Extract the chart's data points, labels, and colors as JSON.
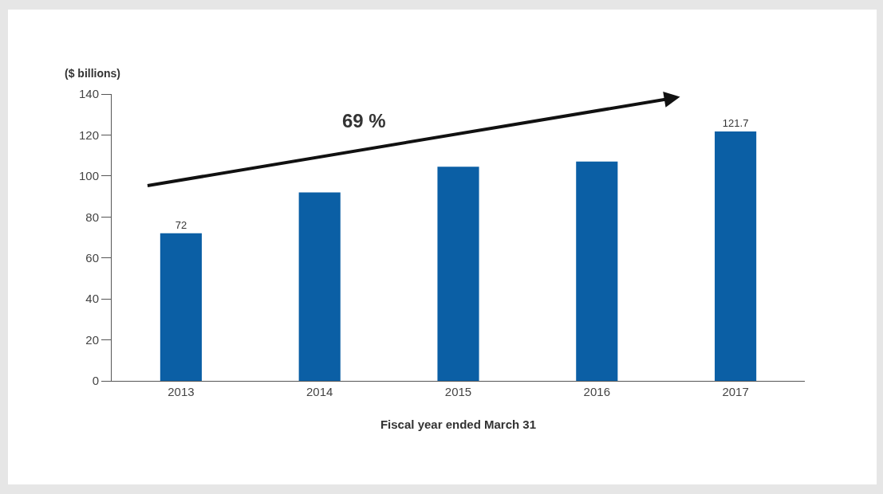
{
  "chart_data": {
    "type": "bar",
    "ylabel": "($ billions)",
    "xlabel": "Fiscal year ended March 31",
    "categories": [
      "2013",
      "2014",
      "2015",
      "2016",
      "2017"
    ],
    "values": [
      72,
      92,
      104.5,
      107,
      121.7
    ],
    "color": "#0b5fa5",
    "value_labels": [
      "72",
      null,
      null,
      null,
      "121.7"
    ],
    "ylim": [
      0,
      140
    ],
    "yticks": [
      0,
      20,
      40,
      60,
      80,
      100,
      120,
      140
    ],
    "grid": false,
    "annotations": [
      "69 %"
    ]
  }
}
